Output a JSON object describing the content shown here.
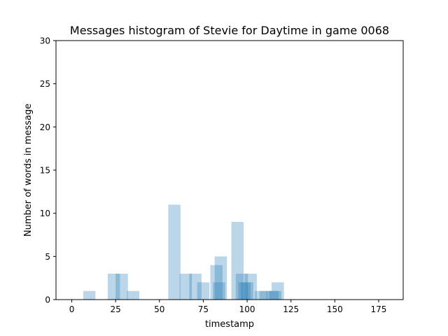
{
  "chart_data": {
    "type": "bar",
    "title": "Messages histogram of Stevie for Daytime in game 0068",
    "xlabel": "timestamp",
    "ylabel": "Number of words in message",
    "xlim": [
      -9,
      189
    ],
    "ylim": [
      0,
      30
    ],
    "xticks": [
      0,
      25,
      50,
      75,
      100,
      125,
      150,
      175
    ],
    "yticks": [
      0,
      5,
      10,
      15,
      20,
      25,
      30
    ],
    "bar_color": "#1f77b4",
    "bar_opacity": 0.3,
    "bars": [
      {
        "x0": 6.5,
        "x1": 13.5,
        "value": 1
      },
      {
        "x0": 20.5,
        "x1": 27.5,
        "value": 3
      },
      {
        "x0": 25.0,
        "x1": 32.0,
        "value": 3
      },
      {
        "x0": 31.5,
        "x1": 38.5,
        "value": 1
      },
      {
        "x0": 55.0,
        "x1": 62.0,
        "value": 11
      },
      {
        "x0": 61.5,
        "x1": 68.5,
        "value": 3
      },
      {
        "x0": 67.0,
        "x1": 74.0,
        "value": 3
      },
      {
        "x0": 71.5,
        "x1": 78.5,
        "value": 2
      },
      {
        "x0": 79.0,
        "x1": 86.0,
        "value": 4
      },
      {
        "x0": 80.5,
        "x1": 87.5,
        "value": 2
      },
      {
        "x0": 81.5,
        "x1": 88.5,
        "value": 5
      },
      {
        "x0": 91.0,
        "x1": 98.0,
        "value": 9
      },
      {
        "x0": 93.5,
        "x1": 100.5,
        "value": 3
      },
      {
        "x0": 96.5,
        "x1": 103.5,
        "value": 2
      },
      {
        "x0": 95.0,
        "x1": 102.0,
        "value": 2
      },
      {
        "x0": 98.5,
        "x1": 105.5,
        "value": 3
      },
      {
        "x0": 104.5,
        "x1": 111.5,
        "value": 1
      },
      {
        "x0": 107.0,
        "x1": 114.0,
        "value": 1
      },
      {
        "x0": 111.0,
        "x1": 118.0,
        "value": 1
      },
      {
        "x0": 114.0,
        "x1": 121.0,
        "value": 2
      },
      {
        "x0": 112.5,
        "x1": 119.5,
        "value": 1
      }
    ]
  }
}
